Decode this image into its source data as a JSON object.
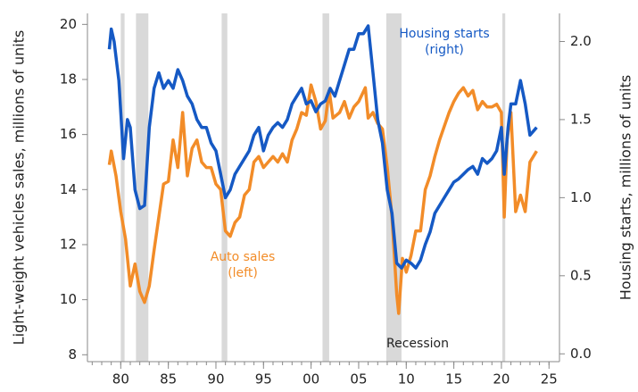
{
  "chart_data": {
    "type": "line",
    "xlim": [
      1976.5,
      2026.1
    ],
    "xticks": [
      {
        "value": 1980,
        "label": "80"
      },
      {
        "value": 1985,
        "label": "85"
      },
      {
        "value": 1990,
        "label": "90"
      },
      {
        "value": 1995,
        "label": "95"
      },
      {
        "value": 2000,
        "label": "00"
      },
      {
        "value": 2005,
        "label": "05"
      },
      {
        "value": 2010,
        "label": "10"
      },
      {
        "value": 2015,
        "label": "15"
      },
      {
        "value": 2020,
        "label": "20"
      },
      {
        "value": 2025,
        "label": "25"
      }
    ],
    "xminorticks": [
      1977,
      1978,
      1979,
      1980,
      1981,
      1982,
      1983,
      1984,
      1985,
      1986,
      1987,
      1988,
      1989,
      1990,
      1991,
      1992,
      1993,
      1994,
      1995,
      1996,
      1997,
      1998,
      1999,
      2000,
      2001,
      2002,
      2003,
      2004,
      2005,
      2006,
      2007,
      2008,
      2009,
      2010,
      2011,
      2012,
      2013,
      2014,
      2015,
      2016,
      2017,
      2018,
      2019,
      2020,
      2021,
      2022,
      2023,
      2024,
      2025
    ],
    "ylim": [
      7.75,
      20.4
    ],
    "yticks": [
      8,
      10,
      12,
      14,
      16,
      18,
      20
    ],
    "y2lim": [
      -0.05,
      2.18
    ],
    "y2ticks": [
      {
        "value": 0,
        "label": "0.0"
      },
      {
        "value": 0.5,
        "label": "0.5"
      },
      {
        "value": 1,
        "label": "1.0"
      },
      {
        "value": 1.5,
        "label": "1.5"
      },
      {
        "value": 2,
        "label": "2.0"
      }
    ],
    "ylabel": "Light-weight vehicles sales, millions of units",
    "y2label": "Housing starts, millions of units",
    "recession_label": "Recession",
    "recession_color": "#d9d9d9",
    "recessions": [
      [
        1980.0,
        1980.4
      ],
      [
        1981.6,
        1982.9
      ],
      [
        1990.6,
        1991.2
      ],
      [
        2001.2,
        2001.9
      ],
      [
        2007.9,
        2009.5
      ],
      [
        2020.1,
        2020.4
      ]
    ],
    "series": [
      {
        "label": [
          "Auto sales",
          "(left)"
        ],
        "color": "#f28c28",
        "x": [
          1978.8,
          1979,
          1979.5,
          1980,
          1980.5,
          1981,
          1981.5,
          1982,
          1982.5,
          1983,
          1983.5,
          1984,
          1984.5,
          1985,
          1985.5,
          1986,
          1986.5,
          1987,
          1987.5,
          1988,
          1988.5,
          1989,
          1989.5,
          1990,
          1990.5,
          1991,
          1991.5,
          1992,
          1992.5,
          1993,
          1993.5,
          1994,
          1994.5,
          1995,
          1995.5,
          1996,
          1996.5,
          1997,
          1997.5,
          1998,
          1998.5,
          1999,
          1999.5,
          2000,
          2000.5,
          2001,
          2001.5,
          2001.9,
          2002.3,
          2003,
          2003.5,
          2004,
          2004.5,
          2005,
          2005.7,
          2006,
          2006.5,
          2007,
          2007.5,
          2008,
          2008.5,
          2009,
          2009.2,
          2009.6,
          2010,
          2010.5,
          2011,
          2011.5,
          2012,
          2012.5,
          2013,
          2013.5,
          2014,
          2014.5,
          2015,
          2015.5,
          2016,
          2016.5,
          2017,
          2017.5,
          2018,
          2018.5,
          2019,
          2019.5,
          2020,
          2020.3,
          2020.6,
          2021,
          2021.5,
          2022,
          2022.5,
          2023,
          2023.7
        ],
        "values": [
          14.9,
          15.4,
          14.5,
          13.2,
          12.2,
          10.5,
          11.3,
          10.3,
          9.9,
          10.5,
          11.8,
          13.0,
          14.2,
          14.3,
          15.8,
          14.8,
          16.8,
          14.5,
          15.5,
          15.8,
          15.0,
          14.8,
          14.8,
          14.2,
          14.0,
          12.5,
          12.3,
          12.8,
          13.0,
          13.8,
          14.0,
          15.0,
          15.2,
          14.8,
          15.0,
          15.2,
          15.0,
          15.3,
          15.0,
          15.8,
          16.2,
          16.8,
          16.7,
          17.8,
          17.2,
          16.2,
          16.5,
          17.6,
          16.6,
          16.8,
          17.2,
          16.6,
          17.0,
          17.2,
          17.7,
          16.6,
          16.8,
          16.4,
          16.2,
          14.8,
          13.0,
          10.2,
          9.5,
          11.5,
          11.0,
          11.6,
          12.5,
          12.5,
          14.0,
          14.5,
          15.2,
          15.8,
          16.3,
          16.8,
          17.2,
          17.5,
          17.7,
          17.4,
          17.6,
          16.9,
          17.2,
          17.0,
          17.0,
          17.1,
          16.8,
          13.0,
          15.8,
          16.8,
          13.2,
          13.8,
          13.2,
          15.0,
          15.4
        ]
      },
      {
        "label": [
          "Housing starts",
          "(right)"
        ],
        "color": "#1559c4",
        "axis": "y2",
        "x": [
          1978.8,
          1979,
          1979.3,
          1979.8,
          1980.3,
          1980.7,
          1981,
          1981.5,
          1982,
          1982.5,
          1983,
          1983.5,
          1984,
          1984.5,
          1985,
          1985.5,
          1986,
          1986.5,
          1987,
          1987.5,
          1988,
          1988.5,
          1989,
          1989.5,
          1990,
          1990.5,
          1991,
          1991.5,
          1992,
          1992.5,
          1993,
          1993.5,
          1994,
          1994.5,
          1995,
          1995.5,
          1996,
          1996.5,
          1997,
          1997.5,
          1998,
          1998.5,
          1999,
          1999.5,
          2000,
          2000.5,
          2001,
          2001.5,
          2002,
          2002.5,
          2003,
          2003.5,
          2004,
          2004.5,
          2005,
          2005.5,
          2006,
          2006.5,
          2007,
          2007.5,
          2008,
          2008.5,
          2009,
          2009.5,
          2010,
          2010.5,
          2011,
          2011.5,
          2012,
          2012.5,
          2013,
          2013.5,
          2014,
          2014.5,
          2015,
          2015.5,
          2016,
          2016.5,
          2017,
          2017.5,
          2018,
          2018.5,
          2019,
          2019.5,
          2020,
          2020.3,
          2020.7,
          2021,
          2021.5,
          2022,
          2022.5,
          2023,
          2023.7
        ],
        "values": [
          1.95,
          2.08,
          2.0,
          1.75,
          1.25,
          1.5,
          1.45,
          1.05,
          0.93,
          0.95,
          1.45,
          1.7,
          1.8,
          1.7,
          1.75,
          1.7,
          1.82,
          1.75,
          1.65,
          1.6,
          1.5,
          1.45,
          1.45,
          1.35,
          1.3,
          1.15,
          1.0,
          1.05,
          1.15,
          1.2,
          1.25,
          1.3,
          1.4,
          1.45,
          1.3,
          1.4,
          1.45,
          1.48,
          1.45,
          1.5,
          1.6,
          1.65,
          1.7,
          1.6,
          1.62,
          1.55,
          1.6,
          1.62,
          1.7,
          1.65,
          1.75,
          1.85,
          1.95,
          1.95,
          2.05,
          2.05,
          2.1,
          1.8,
          1.5,
          1.35,
          1.05,
          0.9,
          0.58,
          0.55,
          0.6,
          0.58,
          0.55,
          0.6,
          0.7,
          0.78,
          0.9,
          0.95,
          1.0,
          1.05,
          1.1,
          1.12,
          1.15,
          1.18,
          1.2,
          1.15,
          1.25,
          1.22,
          1.25,
          1.3,
          1.45,
          1.15,
          1.45,
          1.6,
          1.6,
          1.75,
          1.6,
          1.4,
          1.45
        ]
      }
    ]
  }
}
